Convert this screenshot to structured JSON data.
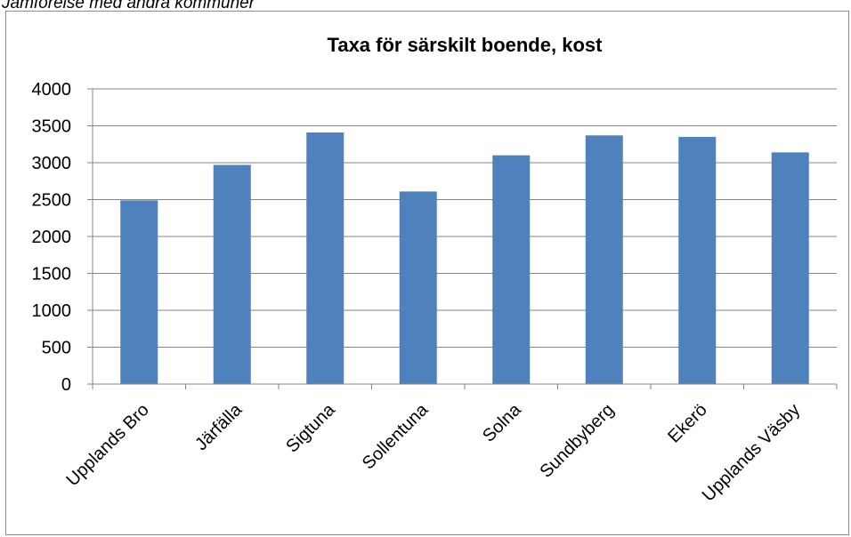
{
  "caption": "Jämförelse med andra kommuner",
  "chart_data": {
    "type": "bar",
    "title": "Taxa för särskilt boende, kost",
    "xlabel": "",
    "ylabel": "",
    "categories": [
      "Upplands Bro",
      "Järfälla",
      "Sigtuna",
      "Sollentuna",
      "Solna",
      "Sundbyberg",
      "Ekerö",
      "Upplands Väsby"
    ],
    "values": [
      2490,
      2970,
      3410,
      2610,
      3100,
      3370,
      3350,
      3140
    ],
    "ylim": [
      0,
      4000
    ],
    "yticks": [
      0,
      500,
      1000,
      1500,
      2000,
      2500,
      3000,
      3500,
      4000
    ],
    "grid": true,
    "legend": "none",
    "bar_color": "#4f81bd"
  }
}
